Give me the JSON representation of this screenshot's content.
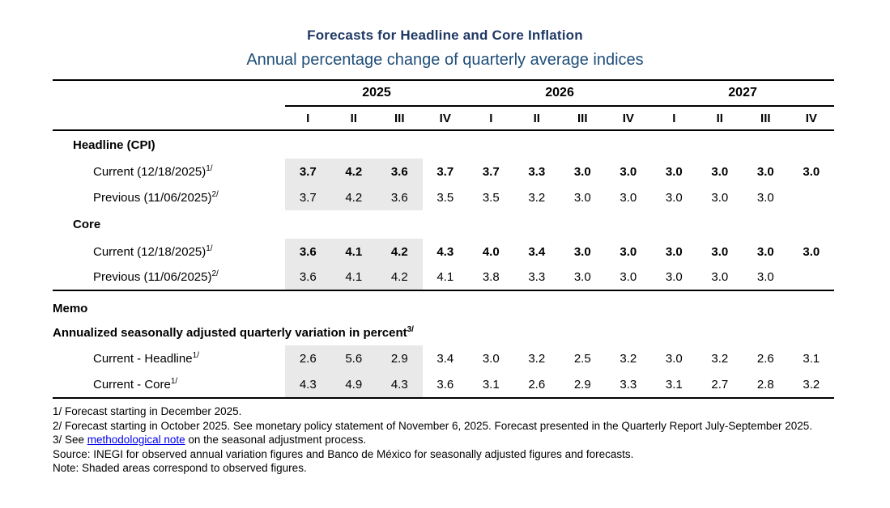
{
  "page": {
    "title": "Forecasts for Headline and Core Inflation",
    "subtitle": "Annual percentage change of quarterly average indices"
  },
  "colors": {
    "title_navy": "#1f3864",
    "subtitle_blue": "#1f4e79",
    "shaded_cell": "#e9e9e9",
    "link_blue": "#0000ee",
    "rule_black": "#000000"
  },
  "table": {
    "years": [
      {
        "label": "2025",
        "quarters": [
          "I",
          "II",
          "III",
          "IV"
        ]
      },
      {
        "label": "2026",
        "quarters": [
          "I",
          "II",
          "III",
          "IV"
        ]
      },
      {
        "label": "2027",
        "quarters": [
          "I",
          "II",
          "III",
          "IV"
        ]
      }
    ],
    "rows": [
      {
        "type": "section",
        "label": "Headline (CPI)"
      },
      {
        "type": "data",
        "label": "Current (12/18/2025)",
        "sup": "1/",
        "bold": true,
        "shaded_cols": 3,
        "values": [
          "3.7",
          "4.2",
          "3.6",
          "3.7",
          "3.7",
          "3.3",
          "3.0",
          "3.0",
          "3.0",
          "3.0",
          "3.0",
          "3.0"
        ]
      },
      {
        "type": "data",
        "label": "Previous (11/06/2025)",
        "sup": "2/",
        "bold": false,
        "shaded_cols": 3,
        "values": [
          "3.7",
          "4.2",
          "3.6",
          "3.5",
          "3.5",
          "3.2",
          "3.0",
          "3.0",
          "3.0",
          "3.0",
          "3.0",
          ""
        ]
      },
      {
        "type": "section",
        "label": "Core"
      },
      {
        "type": "data",
        "label": "Current (12/18/2025)",
        "sup": "1/",
        "bold": true,
        "shaded_cols": 3,
        "values": [
          "3.6",
          "4.1",
          "4.2",
          "4.3",
          "4.0",
          "3.4",
          "3.0",
          "3.0",
          "3.0",
          "3.0",
          "3.0",
          "3.0"
        ]
      },
      {
        "type": "data",
        "label": "Previous (11/06/2025)",
        "sup": "2/",
        "bold": false,
        "shaded_cols": 3,
        "values": [
          "3.6",
          "4.1",
          "4.2",
          "4.1",
          "3.8",
          "3.3",
          "3.0",
          "3.0",
          "3.0",
          "3.0",
          "3.0",
          ""
        ]
      },
      {
        "type": "memo-head",
        "label": "Memo",
        "first": true
      },
      {
        "type": "memo-head",
        "label": "Annualized seasonally adjusted quarterly variation in percent",
        "sup": "3/"
      },
      {
        "type": "data",
        "label": "Current - Headline",
        "sup": "1/",
        "bold": false,
        "shaded_cols": 3,
        "values": [
          "2.6",
          "5.6",
          "2.9",
          "3.4",
          "3.0",
          "3.2",
          "2.5",
          "3.2",
          "3.0",
          "3.2",
          "2.6",
          "3.1"
        ]
      },
      {
        "type": "data",
        "label": "Current - Core",
        "sup": "1/",
        "bold": false,
        "shaded_cols": 3,
        "values": [
          "4.3",
          "4.9",
          "4.3",
          "3.6",
          "3.1",
          "2.6",
          "2.9",
          "3.3",
          "3.1",
          "2.7",
          "2.8",
          "3.2"
        ]
      }
    ]
  },
  "footnotes": {
    "note1": "1/ Forecast starting in December 2025.",
    "note2": "2/ Forecast starting in October 2025. See monetary policy statement of November 6, 2025. Forecast presented in the Quarterly Report July-September 2025.",
    "note3": {
      "prefix": "3/ See ",
      "link": "methodological note",
      "suffix": " on the seasonal adjustment process."
    },
    "source": "Source: INEGI for observed annual variation figures and Banco de México for seasonally adjusted figures and forecasts.",
    "note": "Note: Shaded areas correspond to observed figures."
  }
}
